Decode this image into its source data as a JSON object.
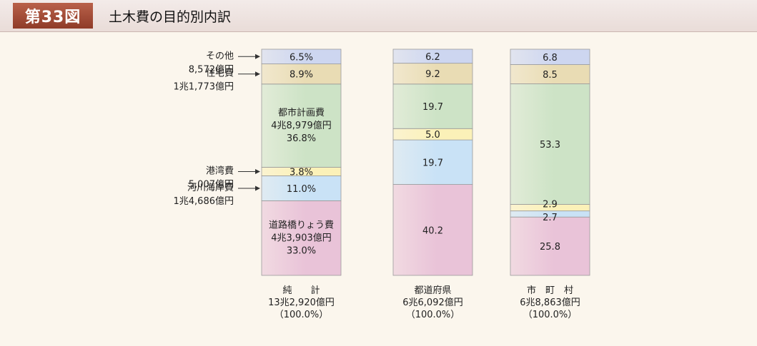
{
  "header": {
    "figure_number": "第33図",
    "title": "土木費の目的別内訳"
  },
  "chart_data": {
    "type": "bar",
    "subtype": "stacked-100-percent",
    "legend_placement": "left",
    "categories": [
      {
        "name": "純　　計",
        "total": "13兆2,920億円",
        "pct": "（100.0%）"
      },
      {
        "name": "都道府県",
        "total": "6兆6,092億円",
        "pct": "（100.0%）"
      },
      {
        "name": "市　町　村",
        "total": "6兆8,863億円",
        "pct": "（100.0%）"
      }
    ],
    "series": [
      {
        "name": "道路橋りょう費",
        "color": "#e9c3d8",
        "values": [
          33.0,
          40.2,
          25.8
        ],
        "labels": [
          "33.0%",
          "40.2",
          "25.8"
        ],
        "amount": "4兆3,903億円"
      },
      {
        "name": "河川海岸費",
        "color": "#c9e2f6",
        "values": [
          11.0,
          19.7,
          2.7
        ],
        "labels": [
          "11.0%",
          "19.7",
          "2.7"
        ],
        "amount": "1兆4,686億円"
      },
      {
        "name": "港湾費",
        "color": "#fbf1b8",
        "values": [
          3.8,
          5.0,
          2.9
        ],
        "labels": [
          "3.8%",
          "5.0",
          "2.9"
        ],
        "amount": "5,007億円"
      },
      {
        "name": "都市計画費",
        "color": "#cde3c6",
        "values": [
          36.8,
          19.7,
          53.3
        ],
        "labels": [
          "36.8%",
          "19.7",
          "53.3"
        ],
        "amount": "4兆8,979億円"
      },
      {
        "name": "住宅費",
        "color": "#e9dcb4",
        "values": [
          8.9,
          9.2,
          8.5
        ],
        "labels": [
          "8.9%",
          "9.2",
          "8.5"
        ],
        "amount": "1兆1,773億円"
      },
      {
        "name": "その他",
        "color": "#cdd6f0",
        "values": [
          6.5,
          6.2,
          6.8
        ],
        "labels": [
          "6.5%",
          "6.2",
          "6.8"
        ],
        "amount": "8,572億円"
      }
    ],
    "ylim": [
      0,
      100
    ],
    "grid": false
  }
}
